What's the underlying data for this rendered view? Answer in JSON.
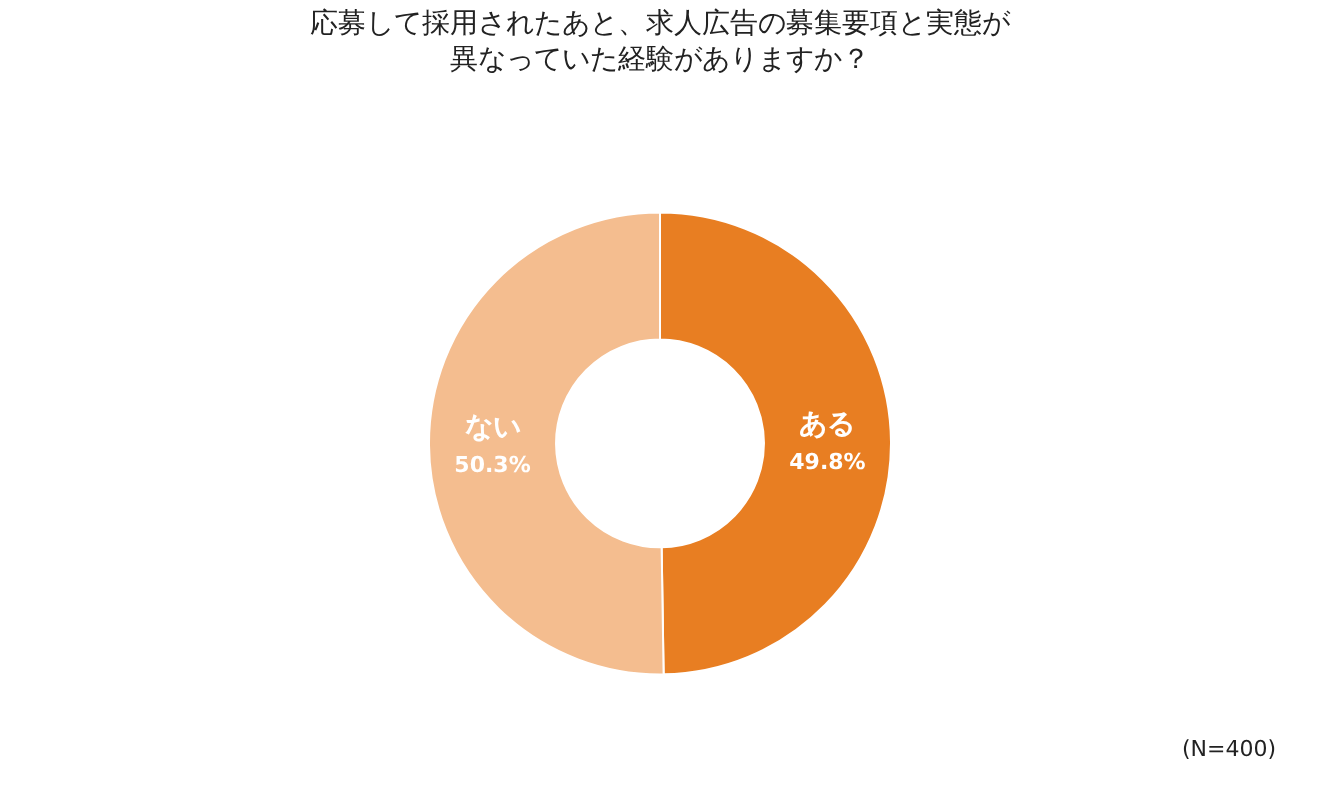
{
  "chart_data": {
    "type": "donut",
    "title": "応募して採用されたあと、求人広告の募集要項と実態が異なっていた経験がありますか？",
    "categories": [
      "ある",
      "ない"
    ],
    "values": [
      49.8,
      50.3
    ],
    "value_labels": [
      "49.8%",
      "50.3%"
    ],
    "colors": [
      "#e87e22",
      "#f4bd8f"
    ],
    "legend": false,
    "annotations": [
      "(N=400)"
    ]
  }
}
